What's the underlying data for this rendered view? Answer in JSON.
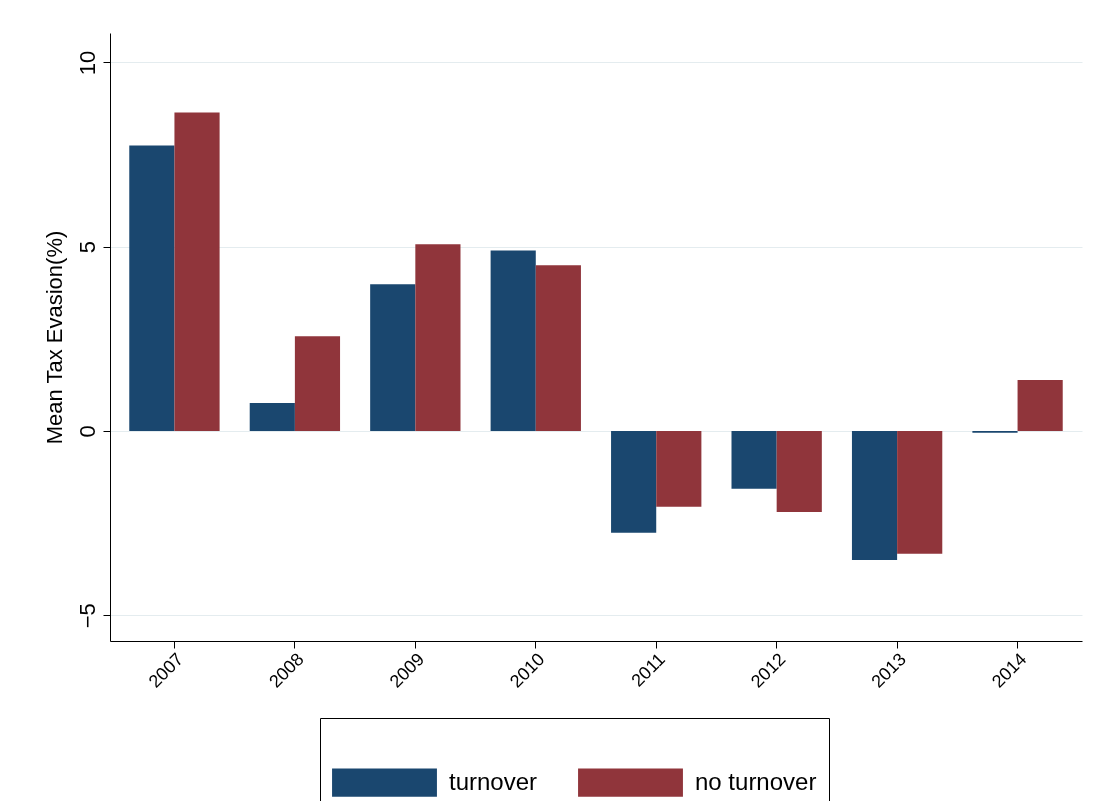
{
  "chart_data": {
    "type": "bar",
    "ylabel": "Mean Tax Evasion(%)",
    "categories": [
      "2007",
      "2008",
      "2009",
      "2010",
      "2011",
      "2012",
      "2013",
      "2014"
    ],
    "series": [
      {
        "name": "turnover",
        "color": "#1a476f",
        "values": [
          7.75,
          0.76,
          3.98,
          4.9,
          -2.76,
          -1.57,
          -3.5,
          -0.05
        ]
      },
      {
        "name": "no turnover",
        "color": "#90353b",
        "values": [
          8.64,
          2.57,
          5.07,
          4.5,
          -2.06,
          -2.2,
          -3.33,
          1.38
        ]
      }
    ],
    "ylim": [
      -5.7,
      10.8
    ],
    "yticks": [
      -5,
      0,
      5,
      10
    ],
    "grid": "y",
    "legend": "bottom"
  }
}
